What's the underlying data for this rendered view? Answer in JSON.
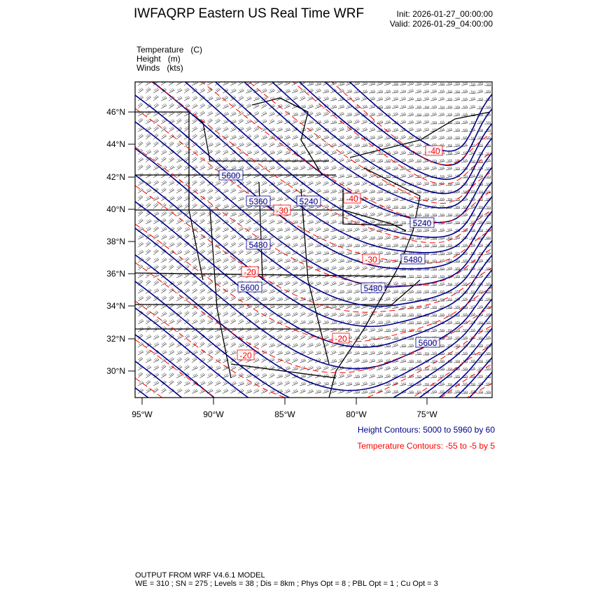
{
  "header": {
    "title": "IWFAQRP Eastern US Real Time WRF",
    "init": "Init: 2026-01-27_00:00:00",
    "valid": "Valid: 2026-01-29_04:00:00"
  },
  "fields": [
    {
      "name": "Temperature",
      "unit": "(C)"
    },
    {
      "name": "Height",
      "unit": "(m)"
    },
    {
      "name": "Winds",
      "unit": "(kts)"
    }
  ],
  "map": {
    "lat_ticks": [
      "46°N",
      "44°N",
      "42°N",
      "40°N",
      "38°N",
      "36°N",
      "34°N",
      "32°N",
      "30°N"
    ],
    "lon_ticks": [
      "95°W",
      "90°W",
      "85°W",
      "80°W",
      "75°W"
    ],
    "height_labels": [
      "5360",
      "5240",
      "5480",
      "5600",
      "5240",
      "5480",
      "5480",
      "5600",
      "5600"
    ],
    "temp_labels": [
      "-30",
      "-40",
      "-30",
      "-20",
      "-20",
      "-40",
      "-20"
    ],
    "colors": {
      "height": "#00008b",
      "temperature": "#ff0000",
      "barbs": "#000000"
    }
  },
  "legend": {
    "height_contours": "Height Contours: 5000 to 5960 by 60",
    "temperature_contours": "Temperature Contours: -55 to -5 by 5"
  },
  "footer": {
    "line1": "OUTPUT FROM WRF V4.6.1 MODEL",
    "line2": "WE = 310 ; SN = 275 ; Levels = 38 ; Dis = 8km ; Phys Opt = 8 ; PBL Opt = 1 ; Cu Opt = 3"
  }
}
